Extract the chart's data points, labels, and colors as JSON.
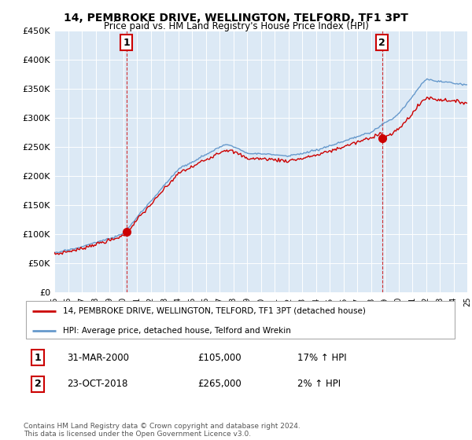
{
  "title": "14, PEMBROKE DRIVE, WELLINGTON, TELFORD, TF1 3PT",
  "subtitle": "Price paid vs. HM Land Registry's House Price Index (HPI)",
  "legend_line1": "14, PEMBROKE DRIVE, WELLINGTON, TELFORD, TF1 3PT (detached house)",
  "legend_line2": "HPI: Average price, detached house, Telford and Wrekin",
  "sale1_label": "1",
  "sale1_date": "31-MAR-2000",
  "sale1_price": "£105,000",
  "sale1_hpi": "17% ↑ HPI",
  "sale2_label": "2",
  "sale2_date": "23-OCT-2018",
  "sale2_price": "£265,000",
  "sale2_hpi": "2% ↑ HPI",
  "footnote": "Contains HM Land Registry data © Crown copyright and database right 2024.\nThis data is licensed under the Open Government Licence v3.0.",
  "red_color": "#cc0000",
  "blue_color": "#6699cc",
  "chart_bg": "#dce9f5",
  "grid_color": "#ffffff",
  "outer_bg": "#ffffff",
  "ylim_min": 0,
  "ylim_max": 450000,
  "yticks": [
    0,
    50000,
    100000,
    150000,
    200000,
    250000,
    300000,
    350000,
    400000,
    450000
  ],
  "ytick_labels": [
    "£0",
    "£50K",
    "£100K",
    "£150K",
    "£200K",
    "£250K",
    "£300K",
    "£350K",
    "£400K",
    "£450K"
  ],
  "sale1_year": 2000.25,
  "sale1_value": 105000,
  "sale2_year": 2018.8,
  "sale2_value": 265000,
  "vline1_year": 2000.25,
  "vline2_year": 2018.8,
  "xmin": 1995.0,
  "xmax": 2025.0
}
